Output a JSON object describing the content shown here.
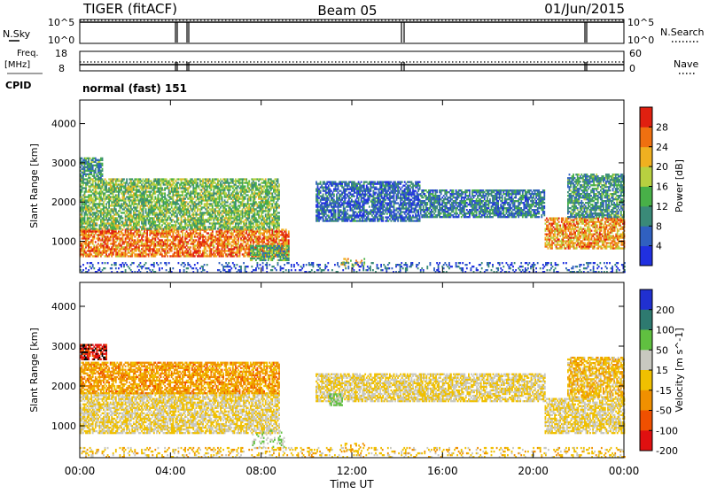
{
  "header": {
    "radar": "TIGER (fitACF)",
    "beam": "Beam 05",
    "date": "01/Jun/2015"
  },
  "top_panels": {
    "nsky": {
      "left_label": "N.Sky",
      "right_label": "N.Search",
      "left_ticks": [
        "10^5",
        "10^0"
      ],
      "right_ticks": [
        "10^5",
        "10^0"
      ]
    },
    "freq": {
      "left_label_1": "Freq.",
      "left_label_2": "[MHz]",
      "right_label": "Nave",
      "left_ticks": [
        "18",
        "8"
      ],
      "right_ticks": [
        "60",
        "0"
      ]
    },
    "cpid": {
      "label": "CPID",
      "value": "normal (fast) 151"
    }
  },
  "x_axis": {
    "label": "Time UT",
    "ticks": [
      "00:00",
      "04:00",
      "08:00",
      "12:00",
      "16:00",
      "20:00",
      "00:00"
    ]
  },
  "chart_data": [
    {
      "type": "heatmap",
      "title": "",
      "xlabel": "Time UT",
      "ylabel": "Slant Range [km]",
      "xlim_hours": [
        0,
        24
      ],
      "ylim": [
        200,
        4600
      ],
      "yticks": [
        1000,
        2000,
        3000,
        4000
      ],
      "colorbar": {
        "label": "Power [dB]",
        "ticks": [
          "4",
          "8",
          "12",
          "16",
          "20",
          "24",
          "28"
        ],
        "range": [
          0,
          30
        ],
        "colors": [
          "#2030e0",
          "#3060c0",
          "#3a8a78",
          "#48b048",
          "#b8d040",
          "#f0b020",
          "#f07010",
          "#e02010"
        ]
      },
      "regions": [
        {
          "t0": 0.0,
          "t1": 9.2,
          "r0": 600,
          "r1": 1300,
          "level": 24
        },
        {
          "t0": 0.0,
          "t1": 8.8,
          "r0": 1300,
          "r1": 2600,
          "level": 14
        },
        {
          "t0": 0.0,
          "t1": 1.0,
          "r0": 2600,
          "r1": 3100,
          "level": 10
        },
        {
          "t0": 7.5,
          "t1": 9.2,
          "r0": 500,
          "r1": 900,
          "level": 12
        },
        {
          "t0": 10.4,
          "t1": 15.0,
          "r0": 1500,
          "r1": 2500,
          "level": 6
        },
        {
          "t0": 15.0,
          "t1": 20.5,
          "r0": 1600,
          "r1": 2300,
          "level": 8
        },
        {
          "t0": 20.5,
          "t1": 24.0,
          "r0": 800,
          "r1": 1600,
          "level": 22
        },
        {
          "t0": 21.5,
          "t1": 24.0,
          "r0": 1600,
          "r1": 2700,
          "level": 10
        },
        {
          "t0": 11.5,
          "t1": 12.6,
          "r0": 350,
          "r1": 550,
          "level": 20
        },
        {
          "t0": 0.0,
          "t1": 24.0,
          "r0": 200,
          "r1": 450,
          "level": 5
        }
      ]
    },
    {
      "type": "heatmap",
      "title": "",
      "xlabel": "Time UT",
      "ylabel": "Slant Range [km]",
      "xlim_hours": [
        0,
        24
      ],
      "ylim": [
        200,
        4600
      ],
      "yticks": [
        1000,
        2000,
        3000,
        4000
      ],
      "colorbar": {
        "label": "Velocity [m s^-1]",
        "ticks": [
          "200",
          "100",
          "50",
          "15",
          "-15",
          "-50",
          "-100",
          "-200"
        ],
        "range": [
          -250,
          250
        ],
        "colors": [
          "#2030d0",
          "#2e7a70",
          "#60c040",
          "#c8c8c0",
          "#f0c000",
          "#f09000",
          "#f05000",
          "#e01010"
        ]
      },
      "regions": [
        {
          "t0": 0.0,
          "t1": 8.8,
          "r0": 800,
          "r1": 1800,
          "level": 0
        },
        {
          "t0": 0.0,
          "t1": 8.8,
          "r0": 1800,
          "r1": 2600,
          "level": -80
        },
        {
          "t0": 0.0,
          "t1": 1.2,
          "r0": 2650,
          "r1": 3050,
          "level": -220
        },
        {
          "t0": 7.6,
          "t1": 9.0,
          "r0": 450,
          "r1": 900,
          "level": 60
        },
        {
          "t0": 10.4,
          "t1": 20.5,
          "r0": 1600,
          "r1": 2300,
          "level": 0
        },
        {
          "t0": 11.0,
          "t1": 11.6,
          "r0": 1500,
          "r1": 1800,
          "level": 70
        },
        {
          "t0": 20.5,
          "t1": 24.0,
          "r0": 800,
          "r1": 1700,
          "level": 0
        },
        {
          "t0": 21.5,
          "t1": 24.0,
          "r0": 1700,
          "r1": 2700,
          "level": -40
        },
        {
          "t0": 11.5,
          "t1": 12.6,
          "r0": 350,
          "r1": 550,
          "level": -60
        },
        {
          "t0": 0.0,
          "t1": 24.0,
          "r0": 200,
          "r1": 450,
          "level": -30
        }
      ]
    }
  ]
}
